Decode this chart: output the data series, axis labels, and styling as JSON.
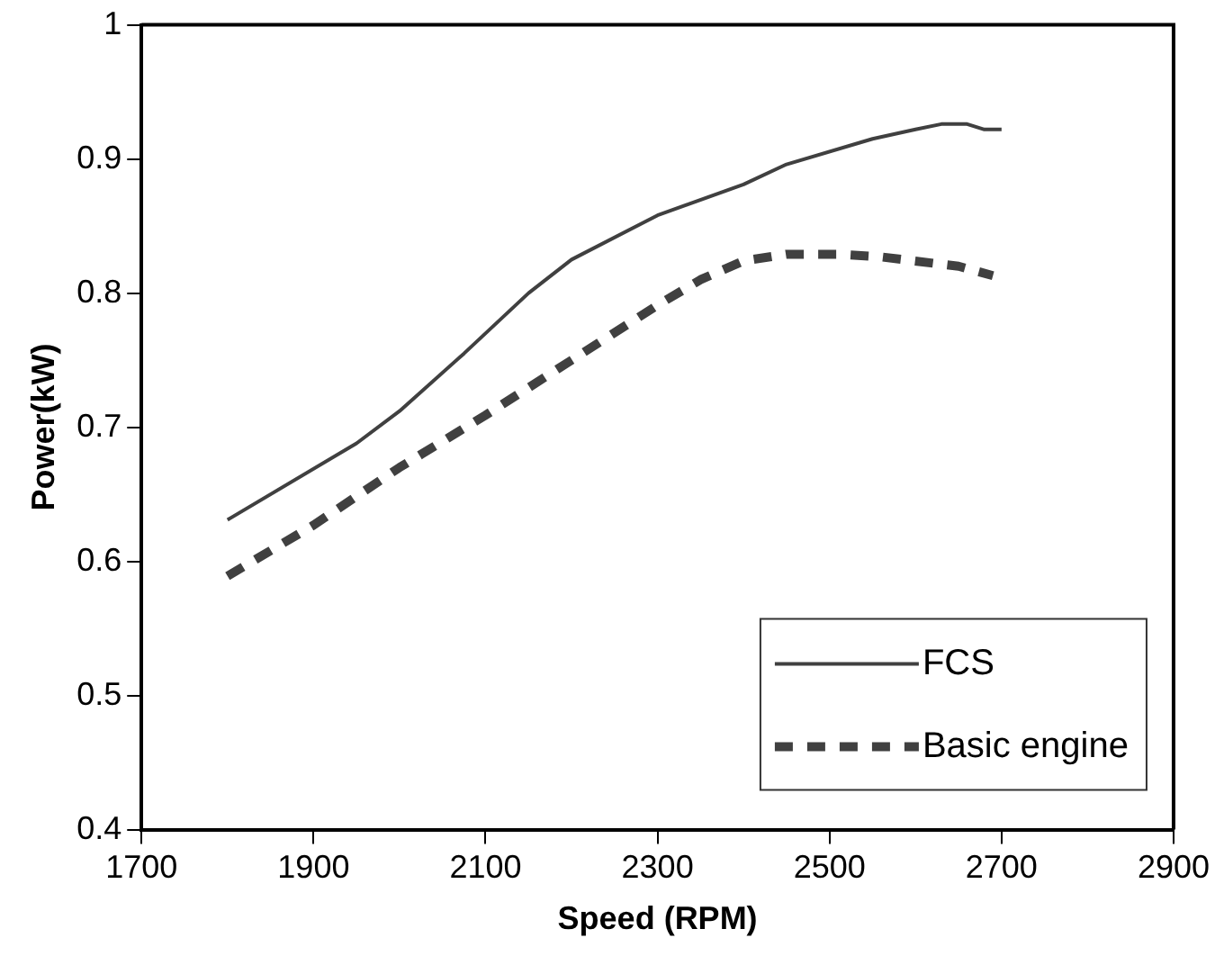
{
  "chart_data": {
    "type": "line",
    "xlabel": "Speed (RPM)",
    "ylabel": "Power(kW)",
    "xlim": [
      1700,
      2900
    ],
    "xticks": [
      1700,
      1900,
      2100,
      2300,
      2500,
      2700,
      2900
    ],
    "ylim": [
      0.4,
      1
    ],
    "yticks": [
      0.4,
      0.5,
      0.6,
      0.7,
      0.8,
      0.9,
      1
    ],
    "grid": false,
    "legend": "bottom right",
    "marker": "none",
    "series": [
      {
        "name": "FCS",
        "color": "#404040",
        "line_style": "solid",
        "x": [
          1800,
          1950,
          2000,
          2075,
          2150,
          2200,
          2300,
          2400,
          2450,
          2550,
          2600,
          2630,
          2660,
          2680,
          2700
        ],
        "values": [
          0.631,
          0.688,
          0.712,
          0.755,
          0.8,
          0.825,
          0.858,
          0.881,
          0.896,
          0.915,
          0.922,
          0.926,
          0.926,
          0.922,
          0.922
        ]
      },
      {
        "name": "Basic engine",
        "color": "#404040",
        "line_style": "dashed",
        "x": [
          1800,
          1900,
          2000,
          2100,
          2200,
          2300,
          2350,
          2400,
          2450,
          2510,
          2560,
          2650,
          2690
        ],
        "values": [
          0.589,
          0.627,
          0.67,
          0.709,
          0.75,
          0.791,
          0.81,
          0.824,
          0.829,
          0.829,
          0.827,
          0.82,
          0.813
        ]
      }
    ]
  }
}
